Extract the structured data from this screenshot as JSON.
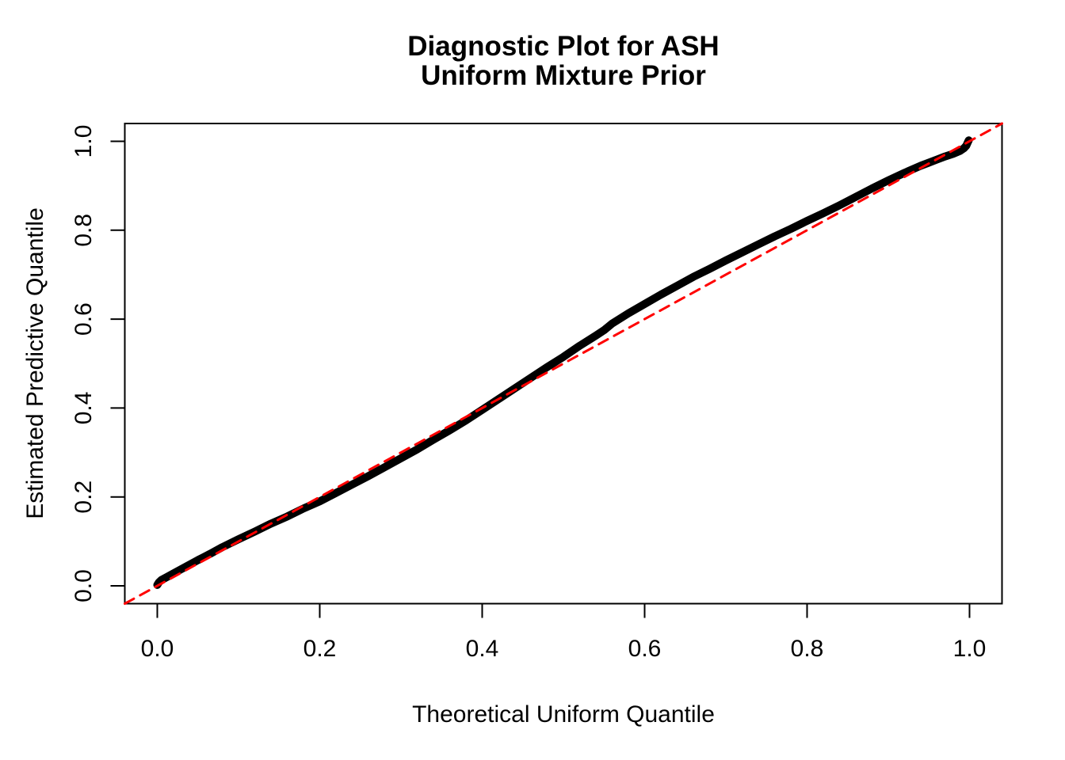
{
  "title": {
    "line1": "Diagnostic Plot for ASH",
    "line2": "Uniform Mixture Prior"
  },
  "chart_data": {
    "type": "line",
    "title": "Diagnostic Plot for ASH\nUniform Mixture Prior",
    "xlabel": "Theoretical Uniform Quantile",
    "ylabel": "Estimated Predictive Quantile",
    "xlim": [
      -0.04,
      1.04
    ],
    "ylim": [
      -0.04,
      1.04
    ],
    "grid": "off",
    "legend": "none",
    "x_ticks": {
      "values": [
        0.0,
        0.2,
        0.4,
        0.6,
        0.8,
        1.0
      ],
      "labels": [
        "0.0",
        "0.2",
        "0.4",
        "0.6",
        "0.8",
        "1.0"
      ]
    },
    "y_ticks": {
      "values": [
        0.0,
        0.2,
        0.4,
        0.6,
        0.8,
        1.0
      ],
      "labels": [
        "0.0",
        "0.2",
        "0.4",
        "0.6",
        "0.8",
        "1.0"
      ]
    },
    "colors": {
      "curve": "#000000",
      "reference": "#FF0000",
      "axis": "#000000",
      "background": "#FFFFFF"
    },
    "series": [
      {
        "name": "estimated-predictive-quantile-curve",
        "style": "solid",
        "color": "#000000",
        "width": 10,
        "points": [
          [
            0.0,
            0.002
          ],
          [
            0.002,
            0.008
          ],
          [
            0.005,
            0.013
          ],
          [
            0.012,
            0.02
          ],
          [
            0.02,
            0.028
          ],
          [
            0.035,
            0.043
          ],
          [
            0.05,
            0.058
          ],
          [
            0.065,
            0.072
          ],
          [
            0.08,
            0.087
          ],
          [
            0.1,
            0.105
          ],
          [
            0.12,
            0.122
          ],
          [
            0.14,
            0.14
          ],
          [
            0.16,
            0.156
          ],
          [
            0.18,
            0.174
          ],
          [
            0.2,
            0.19
          ],
          [
            0.22,
            0.209
          ],
          [
            0.24,
            0.228
          ],
          [
            0.26,
            0.247
          ],
          [
            0.28,
            0.267
          ],
          [
            0.3,
            0.287
          ],
          [
            0.32,
            0.307
          ],
          [
            0.34,
            0.329
          ],
          [
            0.36,
            0.35
          ],
          [
            0.38,
            0.372
          ],
          [
            0.4,
            0.396
          ],
          [
            0.42,
            0.42
          ],
          [
            0.44,
            0.444
          ],
          [
            0.46,
            0.468
          ],
          [
            0.48,
            0.492
          ],
          [
            0.5,
            0.515
          ],
          [
            0.52,
            0.54
          ],
          [
            0.54,
            0.563
          ],
          [
            0.55,
            0.575
          ],
          [
            0.56,
            0.59
          ],
          [
            0.58,
            0.613
          ],
          [
            0.6,
            0.634
          ],
          [
            0.62,
            0.655
          ],
          [
            0.64,
            0.675
          ],
          [
            0.66,
            0.695
          ],
          [
            0.68,
            0.713
          ],
          [
            0.7,
            0.732
          ],
          [
            0.72,
            0.75
          ],
          [
            0.74,
            0.768
          ],
          [
            0.76,
            0.786
          ],
          [
            0.78,
            0.803
          ],
          [
            0.8,
            0.821
          ],
          [
            0.82,
            0.838
          ],
          [
            0.84,
            0.856
          ],
          [
            0.86,
            0.875
          ],
          [
            0.88,
            0.894
          ],
          [
            0.9,
            0.912
          ],
          [
            0.92,
            0.929
          ],
          [
            0.94,
            0.945
          ],
          [
            0.95,
            0.952
          ],
          [
            0.96,
            0.959
          ],
          [
            0.97,
            0.966
          ],
          [
            0.98,
            0.972
          ],
          [
            0.988,
            0.978
          ],
          [
            0.993,
            0.984
          ],
          [
            0.996,
            0.99
          ],
          [
            0.998,
            0.998
          ],
          [
            0.999,
            1.002
          ]
        ]
      },
      {
        "name": "identity-reference-line",
        "style": "dashed",
        "color": "#FF0000",
        "width": 3,
        "points": [
          [
            -0.04,
            -0.04
          ],
          [
            1.04,
            1.04
          ]
        ]
      }
    ]
  }
}
